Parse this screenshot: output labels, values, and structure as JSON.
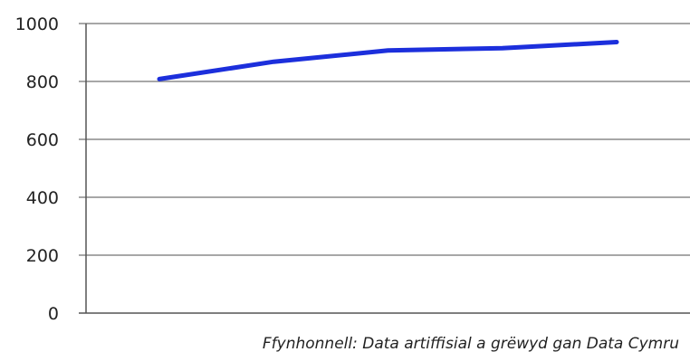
{
  "chart_data": {
    "type": "line",
    "x": [
      1,
      2,
      3,
      4,
      5
    ],
    "series": [
      {
        "values": [
          808,
          868,
          907,
          915,
          936
        ],
        "color": "#1c2fdc"
      }
    ],
    "ylim": [
      0,
      1000
    ],
    "yticks": [
      "0",
      "200",
      "400",
      "600",
      "800",
      "1000"
    ],
    "grid": true,
    "legend": "none",
    "colors": {
      "grid": "#8a8a8a",
      "axis": "#555555",
      "line": "#1c2fdc"
    }
  },
  "source_note": "Ffynhonnell: Data artiffisial a grëwyd gan Data Cymru"
}
